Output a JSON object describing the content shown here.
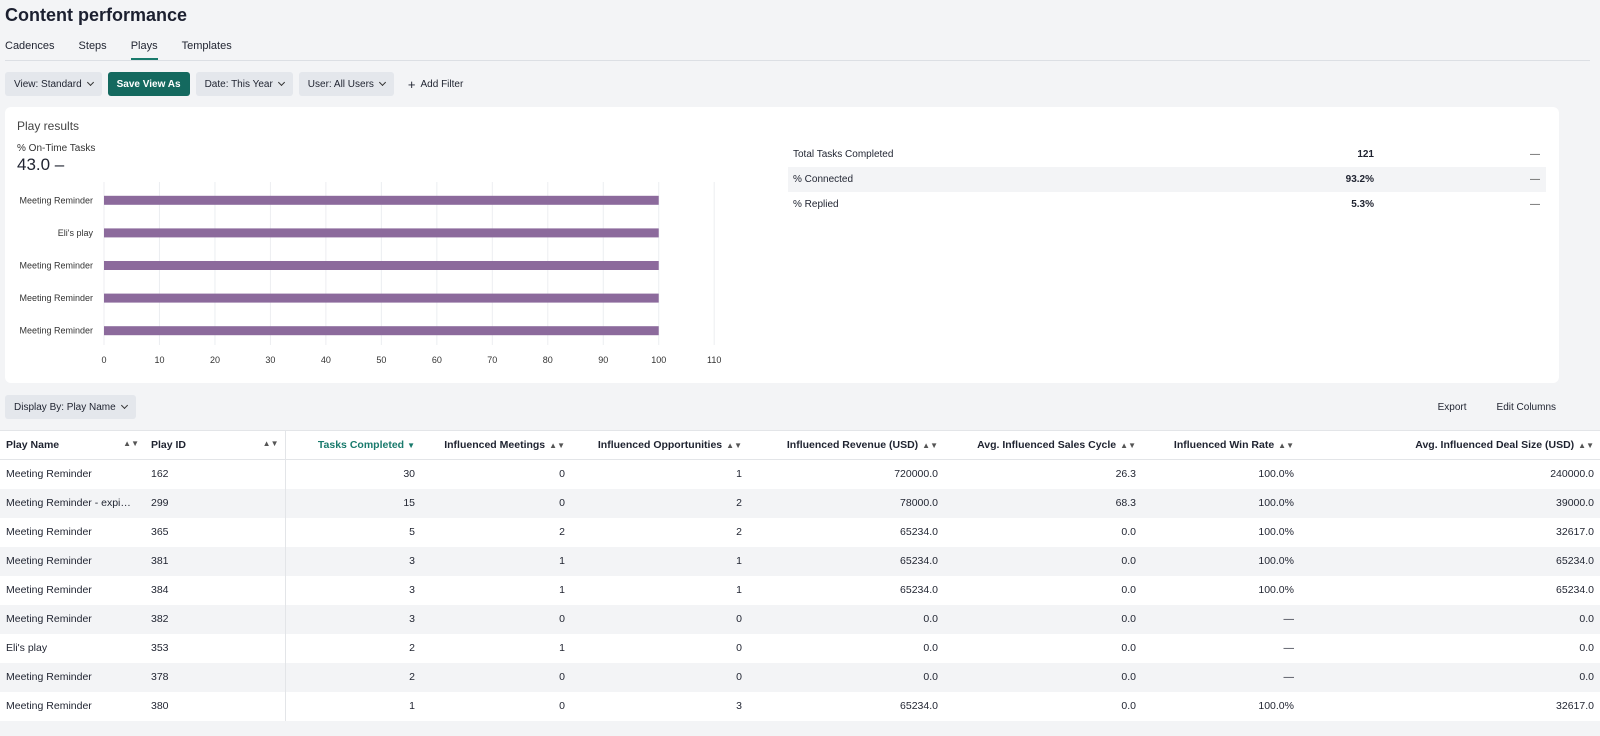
{
  "page": {
    "title": "Content performance"
  },
  "tabs": [
    {
      "label": "Cadences",
      "active": false
    },
    {
      "label": "Steps",
      "active": false
    },
    {
      "label": "Plays",
      "active": true
    },
    {
      "label": "Templates",
      "active": false
    }
  ],
  "toolbar": {
    "view": "View: Standard",
    "save_view": "Save View As",
    "date": "Date: This Year",
    "user": "User: All Users",
    "add_filter": "Add Filter"
  },
  "results": {
    "title": "Play results",
    "metric_label": "% On-Time Tasks",
    "metric_value": "43.0 –",
    "stats": [
      {
        "name": "Total Tasks Completed",
        "value": "121",
        "change": "—"
      },
      {
        "name": "% Connected",
        "value": "93.2%",
        "change": "—"
      },
      {
        "name": "% Replied",
        "value": "5.3%",
        "change": "—"
      }
    ]
  },
  "chart_data": {
    "type": "bar",
    "orientation": "horizontal",
    "categories": [
      "Meeting Reminder",
      "Eli's play",
      "Meeting Reminder",
      "Meeting Reminder",
      "Meeting Reminder"
    ],
    "values": [
      100,
      100,
      100,
      100,
      100
    ],
    "xticks": [
      0,
      10,
      20,
      30,
      40,
      50,
      60,
      70,
      80,
      90,
      100,
      110
    ],
    "xlim": [
      0,
      110
    ],
    "grid": true,
    "color": "#8c6a9c"
  },
  "display_by": "Display By: Play Name",
  "actions": {
    "export": "Export",
    "edit_columns": "Edit Columns"
  },
  "table": {
    "columns": [
      "Play Name",
      "Play ID",
      "Tasks Completed",
      "Influenced Meetings",
      "Influenced Opportunities",
      "Influenced Revenue (USD)",
      "Avg. Influenced Sales Cycle",
      "Influenced Win Rate",
      "Avg. Influenced Deal Size (USD)"
    ],
    "rows": [
      [
        "Meeting Reminder",
        "162",
        "30",
        "0",
        "1",
        "720000.0",
        "26.3",
        "100.0%",
        "240000.0"
      ],
      [
        "Meeting Reminder - expi…",
        "299",
        "15",
        "0",
        "2",
        "78000.0",
        "68.3",
        "100.0%",
        "39000.0"
      ],
      [
        "Meeting Reminder",
        "365",
        "5",
        "2",
        "2",
        "65234.0",
        "0.0",
        "100.0%",
        "32617.0"
      ],
      [
        "Meeting Reminder",
        "381",
        "3",
        "1",
        "1",
        "65234.0",
        "0.0",
        "100.0%",
        "65234.0"
      ],
      [
        "Meeting Reminder",
        "384",
        "3",
        "1",
        "1",
        "65234.0",
        "0.0",
        "100.0%",
        "65234.0"
      ],
      [
        "Meeting Reminder",
        "382",
        "3",
        "0",
        "0",
        "0.0",
        "0.0",
        "—",
        "0.0"
      ],
      [
        "Eli's play",
        "353",
        "2",
        "1",
        "0",
        "0.0",
        "0.0",
        "—",
        "0.0"
      ],
      [
        "Meeting Reminder",
        "378",
        "2",
        "0",
        "0",
        "0.0",
        "0.0",
        "—",
        "0.0"
      ],
      [
        "Meeting Reminder",
        "380",
        "1",
        "0",
        "3",
        "65234.0",
        "0.0",
        "100.0%",
        "32617.0"
      ]
    ]
  }
}
